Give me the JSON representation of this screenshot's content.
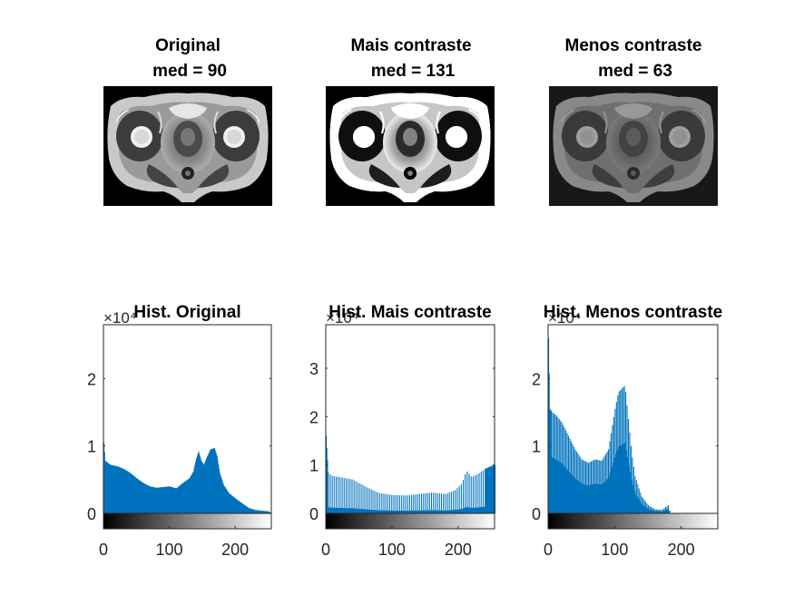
{
  "images": [
    {
      "title_line1": "Original",
      "title_line2": "med = 90",
      "icon": "mri-pelvis-scan"
    },
    {
      "title_line1": "Mais contraste",
      "title_line2": "med = 131",
      "icon": "mri-pelvis-scan-high-contrast"
    },
    {
      "title_line1": "Menos contraste",
      "title_line2": "med = 63",
      "icon": "mri-pelvis-scan-low-contrast"
    }
  ],
  "chart_data": [
    {
      "type": "bar",
      "title": "Hist. Original",
      "xlabel": "",
      "ylabel": "",
      "xlim": [
        0,
        255
      ],
      "ylim": [
        0,
        2.8
      ],
      "y_exponent_label": "×10⁴",
      "xticks": [
        0,
        100,
        200
      ],
      "yticks": [
        0,
        1,
        2
      ],
      "color": "#0072BD",
      "grid": false,
      "profile": [
        [
          0,
          1.05
        ],
        [
          2,
          0.78
        ],
        [
          10,
          0.72
        ],
        [
          20,
          0.7
        ],
        [
          30,
          0.66
        ],
        [
          40,
          0.6
        ],
        [
          50,
          0.52
        ],
        [
          60,
          0.45
        ],
        [
          70,
          0.4
        ],
        [
          80,
          0.38
        ],
        [
          90,
          0.39
        ],
        [
          100,
          0.4
        ],
        [
          110,
          0.37
        ],
        [
          120,
          0.45
        ],
        [
          130,
          0.52
        ],
        [
          136,
          0.62
        ],
        [
          140,
          0.8
        ],
        [
          144,
          0.92
        ],
        [
          148,
          0.78
        ],
        [
          152,
          0.72
        ],
        [
          156,
          0.82
        ],
        [
          162,
          0.95
        ],
        [
          168,
          0.97
        ],
        [
          172,
          0.85
        ],
        [
          176,
          0.6
        ],
        [
          182,
          0.42
        ],
        [
          190,
          0.3
        ],
        [
          200,
          0.22
        ],
        [
          210,
          0.15
        ],
        [
          220,
          0.08
        ],
        [
          230,
          0.05
        ],
        [
          240,
          0.04
        ],
        [
          250,
          0.03
        ],
        [
          255,
          0.0
        ]
      ]
    },
    {
      "type": "bar",
      "title": "Hist. Mais contraste",
      "xlabel": "",
      "ylabel": "",
      "xlim": [
        0,
        255
      ],
      "ylim": [
        0,
        3.9
      ],
      "y_exponent_label": "×10⁴",
      "xticks": [
        0,
        100,
        200
      ],
      "yticks": [
        0,
        1,
        2,
        3
      ],
      "color": "#0072BD",
      "grid": false,
      "profile": [
        [
          0,
          1.6
        ],
        [
          3,
          0.85
        ],
        [
          8,
          0.78
        ],
        [
          20,
          0.75
        ],
        [
          40,
          0.7
        ],
        [
          60,
          0.55
        ],
        [
          80,
          0.42
        ],
        [
          100,
          0.38
        ],
        [
          120,
          0.37
        ],
        [
          140,
          0.4
        ],
        [
          160,
          0.43
        ],
        [
          180,
          0.4
        ],
        [
          195,
          0.48
        ],
        [
          205,
          0.62
        ],
        [
          212,
          0.88
        ],
        [
          220,
          0.75
        ],
        [
          230,
          0.82
        ],
        [
          240,
          0.92
        ],
        [
          250,
          0.98
        ],
        [
          255,
          1.0
        ]
      ]
    },
    {
      "type": "bar",
      "title": "Hist. Menos contraste",
      "xlabel": "",
      "ylabel": "",
      "xlim": [
        0,
        255
      ],
      "ylim": [
        0,
        2.8
      ],
      "y_exponent_label": "×10⁴",
      "xticks": [
        0,
        100,
        200
      ],
      "yticks": [
        0,
        1,
        2
      ],
      "color": "#0072BD",
      "grid": false,
      "profile": [
        [
          0,
          2.6
        ],
        [
          2,
          1.55
        ],
        [
          6,
          1.5
        ],
        [
          12,
          1.45
        ],
        [
          20,
          1.35
        ],
        [
          30,
          1.15
        ],
        [
          40,
          0.95
        ],
        [
          50,
          0.8
        ],
        [
          60,
          0.75
        ],
        [
          70,
          0.8
        ],
        [
          80,
          0.78
        ],
        [
          90,
          0.95
        ],
        [
          100,
          1.55
        ],
        [
          105,
          1.8
        ],
        [
          110,
          1.85
        ],
        [
          115,
          1.9
        ],
        [
          120,
          1.4
        ],
        [
          125,
          0.9
        ],
        [
          130,
          0.55
        ],
        [
          140,
          0.25
        ],
        [
          150,
          0.12
        ],
        [
          160,
          0.06
        ],
        [
          170,
          0.05
        ],
        [
          180,
          0.12
        ],
        [
          183,
          0.0
        ],
        [
          255,
          0.0
        ]
      ]
    }
  ]
}
